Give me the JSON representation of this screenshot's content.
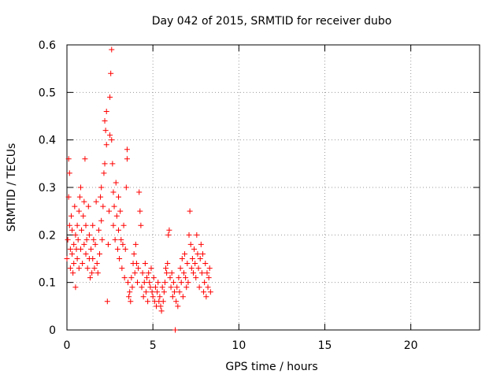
{
  "chart_data": {
    "type": "scatter",
    "title": "Day 042 of 2015, SRMTID for receiver dubo",
    "xlabel": "GPS time / hours",
    "ylabel": "SRMTID / TECUs",
    "xlim": [
      0,
      24
    ],
    "ylim": [
      0,
      0.6
    ],
    "xticks": [
      0,
      5,
      10,
      15,
      20
    ],
    "xtick_labels": [
      "0",
      "5",
      "10",
      "15",
      "20"
    ],
    "yticks": [
      0,
      0.1,
      0.2,
      0.3,
      0.4,
      0.5,
      0.6
    ],
    "ytick_labels": [
      "0",
      "0.1",
      "0.2",
      "0.3",
      "0.4",
      "0.5",
      "0.6"
    ],
    "grid": true,
    "marker": "+",
    "color": "#ff0000",
    "series": [
      {
        "name": "SRMTID",
        "points": [
          [
            0.0,
            0.15
          ],
          [
            0.05,
            0.19
          ],
          [
            0.1,
            0.28
          ],
          [
            0.1,
            0.36
          ],
          [
            0.15,
            0.33
          ],
          [
            0.15,
            0.22
          ],
          [
            0.2,
            0.13
          ],
          [
            0.2,
            0.17
          ],
          [
            0.25,
            0.24
          ],
          [
            0.3,
            0.16
          ],
          [
            0.3,
            0.21
          ],
          [
            0.35,
            0.12
          ],
          [
            0.4,
            0.18
          ],
          [
            0.4,
            0.14
          ],
          [
            0.45,
            0.26
          ],
          [
            0.5,
            0.2
          ],
          [
            0.5,
            0.09
          ],
          [
            0.55,
            0.17
          ],
          [
            0.6,
            0.22
          ],
          [
            0.6,
            0.15
          ],
          [
            0.65,
            0.19
          ],
          [
            0.7,
            0.25
          ],
          [
            0.7,
            0.13
          ],
          [
            0.75,
            0.28
          ],
          [
            0.8,
            0.3
          ],
          [
            0.8,
            0.17
          ],
          [
            0.85,
            0.21
          ],
          [
            0.9,
            0.14
          ],
          [
            0.95,
            0.24
          ],
          [
            1.0,
            0.18
          ],
          [
            1.0,
            0.27
          ],
          [
            1.05,
            0.36
          ],
          [
            1.1,
            0.22
          ],
          [
            1.1,
            0.16
          ],
          [
            1.15,
            0.19
          ],
          [
            1.2,
            0.13
          ],
          [
            1.25,
            0.26
          ],
          [
            1.3,
            0.15
          ],
          [
            1.3,
            0.2
          ],
          [
            1.35,
            0.11
          ],
          [
            1.4,
            0.17
          ],
          [
            1.45,
            0.12
          ],
          [
            1.5,
            0.22
          ],
          [
            1.5,
            0.15
          ],
          [
            1.55,
            0.19
          ],
          [
            1.6,
            0.13
          ],
          [
            1.65,
            0.18
          ],
          [
            1.7,
            0.27
          ],
          [
            1.75,
            0.14
          ],
          [
            1.8,
            0.12
          ],
          [
            1.85,
            0.21
          ],
          [
            1.9,
            0.16
          ],
          [
            1.95,
            0.28
          ],
          [
            2.0,
            0.23
          ],
          [
            2.0,
            0.3
          ],
          [
            2.05,
            0.19
          ],
          [
            2.1,
            0.26
          ],
          [
            2.15,
            0.33
          ],
          [
            2.2,
            0.35
          ],
          [
            2.2,
            0.44
          ],
          [
            2.25,
            0.42
          ],
          [
            2.3,
            0.39
          ],
          [
            2.3,
            0.46
          ],
          [
            2.35,
            0.06
          ],
          [
            2.4,
            0.18
          ],
          [
            2.45,
            0.25
          ],
          [
            2.5,
            0.41
          ],
          [
            2.5,
            0.49
          ],
          [
            2.55,
            0.54
          ],
          [
            2.6,
            0.59
          ],
          [
            2.6,
            0.4
          ],
          [
            2.65,
            0.35
          ],
          [
            2.7,
            0.29
          ],
          [
            2.7,
            0.22
          ],
          [
            2.75,
            0.26
          ],
          [
            2.8,
            0.19
          ],
          [
            2.85,
            0.31
          ],
          [
            2.9,
            0.24
          ],
          [
            2.95,
            0.17
          ],
          [
            3.0,
            0.28
          ],
          [
            3.0,
            0.21
          ],
          [
            3.05,
            0.15
          ],
          [
            3.1,
            0.25
          ],
          [
            3.15,
            0.19
          ],
          [
            3.2,
            0.13
          ],
          [
            3.25,
            0.18
          ],
          [
            3.3,
            0.22
          ],
          [
            3.35,
            0.11
          ],
          [
            3.4,
            0.17
          ],
          [
            3.45,
            0.3
          ],
          [
            3.5,
            0.38
          ],
          [
            3.5,
            0.36
          ],
          [
            3.55,
            0.1
          ],
          [
            3.6,
            0.07
          ],
          [
            3.65,
            0.08
          ],
          [
            3.7,
            0.06
          ],
          [
            3.75,
            0.11
          ],
          [
            3.8,
            0.09
          ],
          [
            3.85,
            0.14
          ],
          [
            3.9,
            0.16
          ],
          [
            3.95,
            0.12
          ],
          [
            4.0,
            0.18
          ],
          [
            4.05,
            0.14
          ],
          [
            4.1,
            0.1
          ],
          [
            4.15,
            0.13
          ],
          [
            4.2,
            0.29
          ],
          [
            4.25,
            0.25
          ],
          [
            4.3,
            0.22
          ],
          [
            4.35,
            0.09
          ],
          [
            4.4,
            0.12
          ],
          [
            4.45,
            0.07
          ],
          [
            4.5,
            0.1
          ],
          [
            4.55,
            0.14
          ],
          [
            4.6,
            0.08
          ],
          [
            4.65,
            0.11
          ],
          [
            4.7,
            0.06
          ],
          [
            4.75,
            0.12
          ],
          [
            4.8,
            0.1
          ],
          [
            4.85,
            0.09
          ],
          [
            4.9,
            0.13
          ],
          [
            4.95,
            0.08
          ],
          [
            5.0,
            0.07
          ],
          [
            5.05,
            0.11
          ],
          [
            5.1,
            0.06
          ],
          [
            5.15,
            0.09
          ],
          [
            5.2,
            0.05
          ],
          [
            5.25,
            0.08
          ],
          [
            5.3,
            0.1
          ],
          [
            5.35,
            0.06
          ],
          [
            5.4,
            0.07
          ],
          [
            5.45,
            0.05
          ],
          [
            5.5,
            0.04
          ],
          [
            5.55,
            0.09
          ],
          [
            5.6,
            0.06
          ],
          [
            5.65,
            0.08
          ],
          [
            5.7,
            0.1
          ],
          [
            5.75,
            0.13
          ],
          [
            5.8,
            0.12
          ],
          [
            5.85,
            0.14
          ],
          [
            5.9,
            0.2
          ],
          [
            5.95,
            0.21
          ],
          [
            6.0,
            0.11
          ],
          [
            6.05,
            0.09
          ],
          [
            6.1,
            0.12
          ],
          [
            6.15,
            0.07
          ],
          [
            6.2,
            0.1
          ],
          [
            6.25,
            0.08
          ],
          [
            6.3,
            0.0
          ],
          [
            6.35,
            0.06
          ],
          [
            6.4,
            0.09
          ],
          [
            6.45,
            0.05
          ],
          [
            6.5,
            0.11
          ],
          [
            6.55,
            0.08
          ],
          [
            6.6,
            0.13
          ],
          [
            6.65,
            0.1
          ],
          [
            6.7,
            0.15
          ],
          [
            6.75,
            0.07
          ],
          [
            6.8,
            0.12
          ],
          [
            6.85,
            0.16
          ],
          [
            6.9,
            0.11
          ],
          [
            6.95,
            0.09
          ],
          [
            7.0,
            0.14
          ],
          [
            7.05,
            0.1
          ],
          [
            7.1,
            0.2
          ],
          [
            7.15,
            0.25
          ],
          [
            7.2,
            0.18
          ],
          [
            7.25,
            0.13
          ],
          [
            7.3,
            0.15
          ],
          [
            7.35,
            0.12
          ],
          [
            7.4,
            0.17
          ],
          [
            7.45,
            0.14
          ],
          [
            7.5,
            0.11
          ],
          [
            7.55,
            0.2
          ],
          [
            7.6,
            0.16
          ],
          [
            7.65,
            0.13
          ],
          [
            7.7,
            0.09
          ],
          [
            7.75,
            0.15
          ],
          [
            7.8,
            0.18
          ],
          [
            7.85,
            0.12
          ],
          [
            7.9,
            0.16
          ],
          [
            7.95,
            0.08
          ],
          [
            8.0,
            0.1
          ],
          [
            8.05,
            0.14
          ],
          [
            8.1,
            0.07
          ],
          [
            8.15,
            0.12
          ],
          [
            8.2,
            0.09
          ],
          [
            8.25,
            0.11
          ],
          [
            8.3,
            0.13
          ],
          [
            8.35,
            0.08
          ]
        ]
      }
    ]
  }
}
